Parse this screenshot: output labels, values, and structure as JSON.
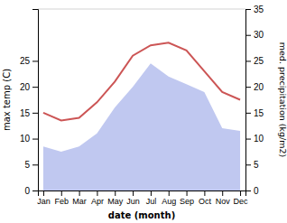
{
  "chart_data": {
    "type": "line",
    "xlabel": "date (month)",
    "ylabel": "max temp (C)",
    "y2label": "med. precipitation (kg/m2)",
    "categories": [
      "Jan",
      "Feb",
      "Mar",
      "Apr",
      "May",
      "Jun",
      "Jul",
      "Aug",
      "Sep",
      "Oct",
      "Nov",
      "Dec"
    ],
    "series": [
      {
        "type": "area",
        "axis": "y2",
        "color": "#c0c8f0",
        "values": [
          8.5,
          7.5,
          8.5,
          11.0,
          16.0,
          20.0,
          24.5,
          22.0,
          20.5,
          19.0,
          12.0,
          11.5
        ]
      },
      {
        "type": "line",
        "color": "#cc5555",
        "values": [
          15.0,
          13.5,
          14.0,
          17.0,
          21.0,
          26.0,
          28.0,
          28.5,
          27.0,
          23.0,
          19.0,
          17.5
        ]
      }
    ],
    "ylim": [
      0,
      35
    ],
    "yticks": [
      0,
      5,
      10,
      15,
      20,
      25
    ],
    "y2lim": [
      0,
      35
    ],
    "y2ticks": [
      0,
      5,
      10,
      15,
      20,
      25,
      30,
      35
    ],
    "grid": false
  }
}
